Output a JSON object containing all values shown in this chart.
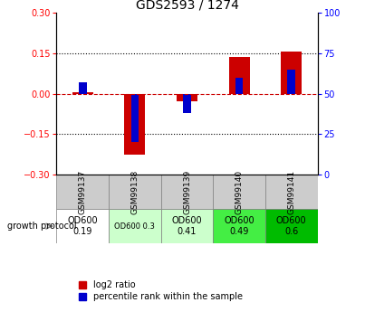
{
  "title": "GDS2593 / 1274",
  "samples": [
    "GSM99137",
    "GSM99138",
    "GSM99139",
    "GSM99140",
    "GSM99141"
  ],
  "log2_ratios": [
    0.005,
    -0.225,
    -0.03,
    0.135,
    0.155
  ],
  "percentile_ranks": [
    57,
    20,
    38,
    60,
    65
  ],
  "ylim_left": [
    -0.3,
    0.3
  ],
  "ylim_right": [
    0,
    100
  ],
  "yticks_left": [
    -0.3,
    -0.15,
    0,
    0.15,
    0.3
  ],
  "yticks_right": [
    0,
    25,
    50,
    75,
    100
  ],
  "bar_color_red": "#cc0000",
  "bar_color_blue": "#0000cc",
  "dashed_line_color": "#cc0000",
  "dotted_line_color": "#000000",
  "bar_width": 0.4,
  "blue_bar_width": 0.15,
  "protocol_labels": [
    "OD600\n0.19",
    "OD600 0.3",
    "OD600\n0.41",
    "OD600\n0.49",
    "OD600\n0.6"
  ],
  "protocol_bg": [
    "#ffffff",
    "#ccffcc",
    "#ccffcc",
    "#44ee44",
    "#00bb00"
  ],
  "protocol_fontsize": [
    7,
    6,
    7,
    7,
    7
  ],
  "sample_bg": "#cccccc",
  "growth_protocol_text": "growth protocol",
  "legend_log2": "log2 ratio",
  "legend_pct": "percentile rank within the sample"
}
